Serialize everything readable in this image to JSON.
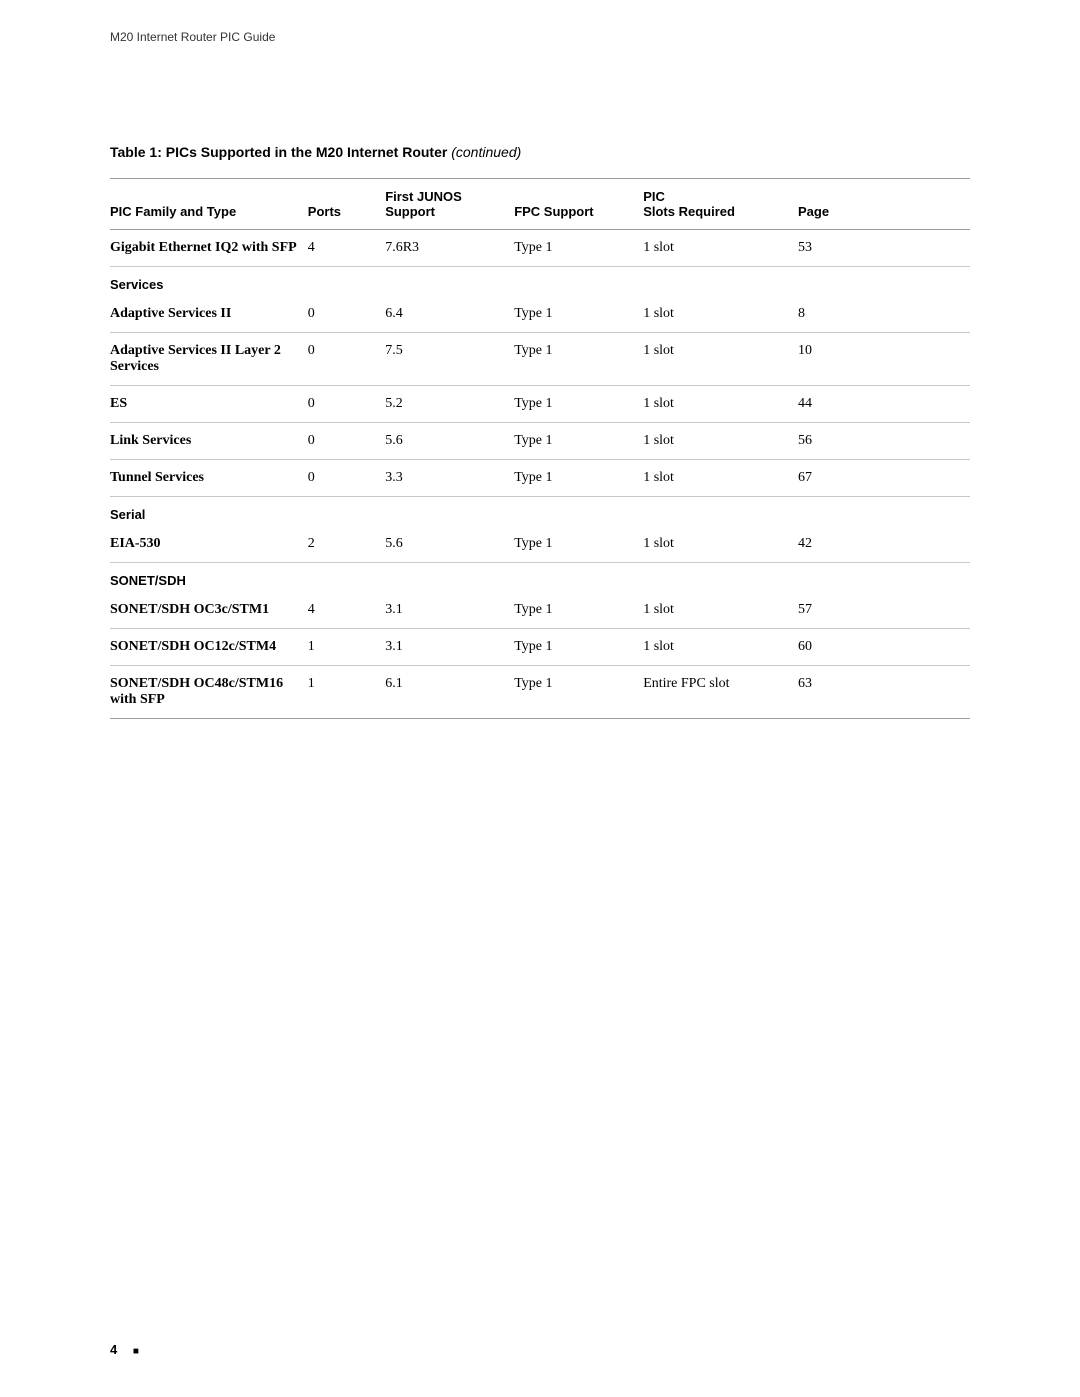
{
  "running_head": "M20 Internet Router PIC Guide",
  "table_title_bold": "Table 1: PICs Supported in the M20 Internet Router",
  "table_title_cont": " (continued)",
  "columns": {
    "c1": "PIC Family and Type",
    "c2": "Ports",
    "c3a": "First JUNOS",
    "c3b": "Support",
    "c4": "FPC Support",
    "c5a": "PIC",
    "c5b": "Slots Required",
    "c6": "Page"
  },
  "rows": {
    "r0": {
      "family": "Gigabit Ethernet IQ2 with SFP",
      "ports": "4",
      "junos": "7.6R3",
      "fpc": "Type 1",
      "slots": "1 slot",
      "page": "53"
    },
    "sec_services": "Services",
    "r1": {
      "family": "Adaptive Services II",
      "ports": "0",
      "junos": "6.4",
      "fpc": "Type 1",
      "slots": "1 slot",
      "page": "8"
    },
    "r2": {
      "family": "Adaptive Services II Layer 2 Services",
      "ports": "0",
      "junos": "7.5",
      "fpc": "Type 1",
      "slots": "1 slot",
      "page": "10"
    },
    "r3": {
      "family": "ES",
      "ports": "0",
      "junos": "5.2",
      "fpc": "Type 1",
      "slots": "1 slot",
      "page": "44"
    },
    "r4": {
      "family": "Link Services",
      "ports": "0",
      "junos": "5.6",
      "fpc": "Type 1",
      "slots": "1 slot",
      "page": "56"
    },
    "r5": {
      "family": "Tunnel Services",
      "ports": "0",
      "junos": "3.3",
      "fpc": "Type 1",
      "slots": "1 slot",
      "page": "67"
    },
    "sec_serial": "Serial",
    "r6": {
      "family": "EIA-530",
      "ports": "2",
      "junos": "5.6",
      "fpc": "Type 1",
      "slots": "1 slot",
      "page": "42"
    },
    "sec_sonet": "SONET/SDH",
    "r7": {
      "family": "SONET/SDH OC3c/STM1",
      "ports": "4",
      "junos": "3.1",
      "fpc": "Type 1",
      "slots": "1 slot",
      "page": "57"
    },
    "r8": {
      "family": "SONET/SDH OC12c/STM4",
      "ports": "1",
      "junos": "3.1",
      "fpc": "Type 1",
      "slots": "1 slot",
      "page": "60"
    },
    "r9": {
      "family": "SONET/SDH OC48c/STM16 with SFP",
      "ports": "1",
      "junos": "6.1",
      "fpc": "Type 1",
      "slots": "Entire FPC slot",
      "page": "63"
    }
  },
  "footer": {
    "page_number": "4",
    "square": "■"
  }
}
